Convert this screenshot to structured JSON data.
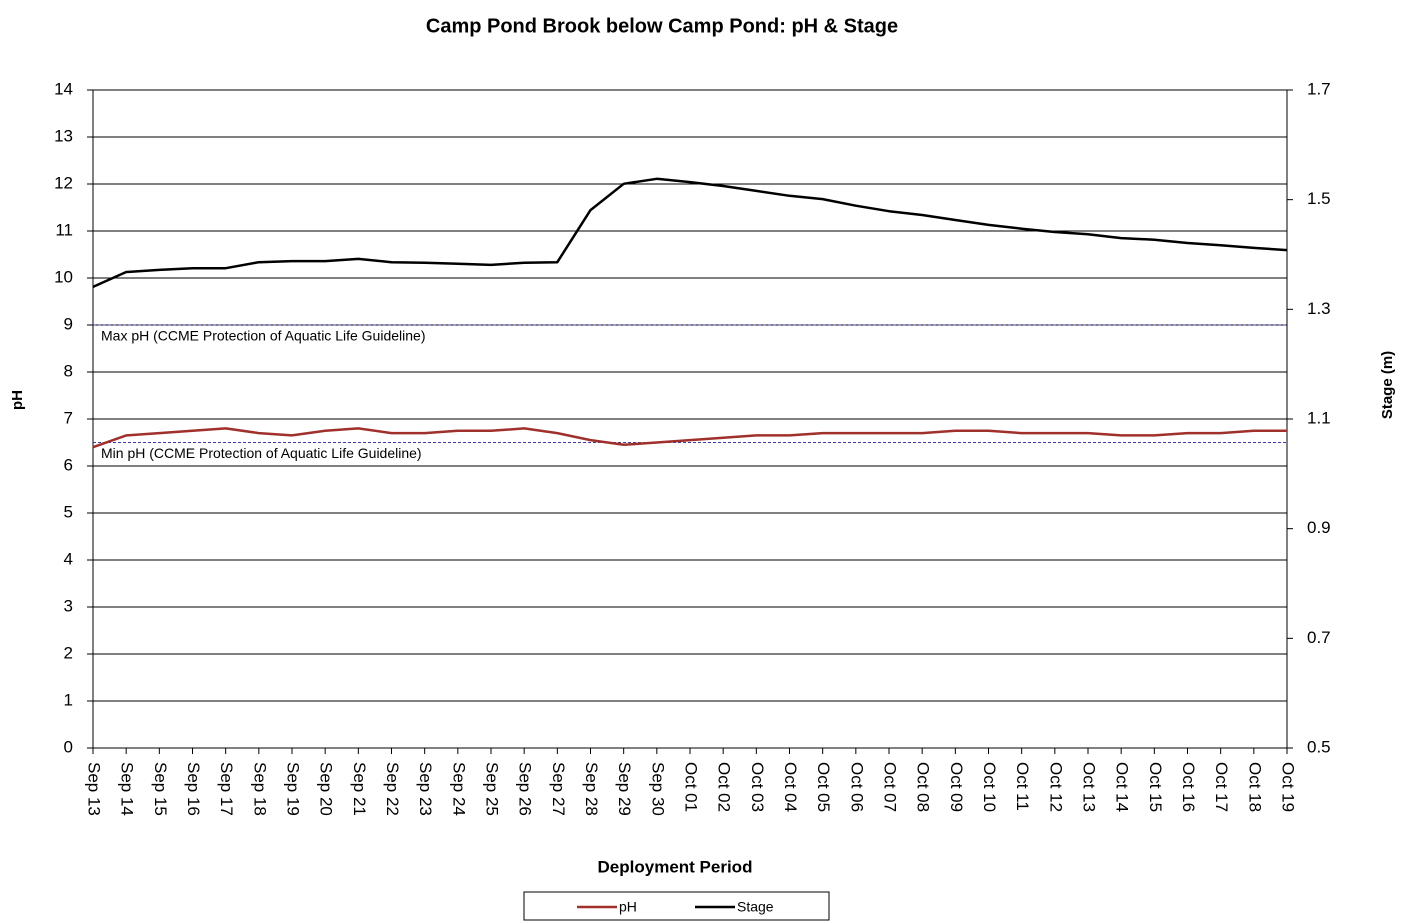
{
  "chart_data": {
    "type": "line",
    "title": "Camp Pond Brook below Camp Pond: pH & Stage",
    "x_label": "Deployment Period",
    "y_label": "pH",
    "y2_label": "Stage (m)",
    "categories": [
      "Sep 13",
      "Sep 14",
      "Sep 15",
      "Sep 16",
      "Sep 17",
      "Sep 18",
      "Sep 19",
      "Sep 20",
      "Sep 21",
      "Sep 22",
      "Sep 23",
      "Sep 24",
      "Sep 25",
      "Sep 26",
      "Sep 27",
      "Sep 28",
      "Sep 29",
      "Sep 30",
      "Oct 01",
      "Oct 02",
      "Oct 03",
      "Oct 04",
      "Oct 05",
      "Oct 06",
      "Oct 07",
      "Oct 08",
      "Oct 09",
      "Oct 10",
      "Oct 11",
      "Oct 12",
      "Oct 13",
      "Oct 14",
      "Oct 15",
      "Oct 16",
      "Oct 17",
      "Oct 18",
      "Oct 19"
    ],
    "series": [
      {
        "name": "pH",
        "color": "#a0302c",
        "values": [
          6.4,
          6.65,
          6.7,
          6.75,
          6.8,
          6.7,
          6.65,
          6.75,
          6.8,
          6.7,
          6.7,
          6.75,
          6.75,
          6.8,
          6.7,
          6.55,
          6.45,
          6.5,
          6.55,
          6.6,
          6.65,
          6.65,
          6.7,
          6.7,
          6.7,
          6.7,
          6.75,
          6.75,
          6.7,
          6.7,
          6.7,
          6.65,
          6.65,
          6.7,
          6.7,
          6.75,
          6.75
        ]
      },
      {
        "name": "Stage",
        "color": "#000000",
        "axis": "y2",
        "values": [
          1.341,
          1.368,
          1.372,
          1.375,
          1.375,
          1.386,
          1.388,
          1.388,
          1.392,
          1.386,
          1.385,
          1.383,
          1.381,
          1.385,
          1.386,
          1.481,
          1.529,
          1.538,
          1.532,
          1.525,
          1.516,
          1.507,
          1.501,
          1.489,
          1.479,
          1.472,
          1.463,
          1.454,
          1.447,
          1.441,
          1.437,
          1.43,
          1.427,
          1.421,
          1.417,
          1.412,
          1.408
        ]
      }
    ],
    "reference_lines": [
      {
        "value": 9,
        "label": "Max pH  (CCME  Protection of Aquatic Life Guideline)",
        "color": "#3a3aa0"
      },
      {
        "value": 6.5,
        "label": "Min pH  (CCME  Protection of Aquatic Life Guideline)",
        "color": "#3a3aa0"
      }
    ],
    "ylim": [
      0,
      14
    ],
    "yticks": [
      0,
      1,
      2,
      3,
      4,
      5,
      6,
      7,
      8,
      9,
      10,
      11,
      12,
      13,
      14
    ],
    "y2lim": [
      0.5,
      1.7
    ],
    "y2ticks": [
      0.5,
      0.7,
      0.9,
      1.1,
      1.3,
      1.5,
      1.7
    ],
    "grid": true
  }
}
